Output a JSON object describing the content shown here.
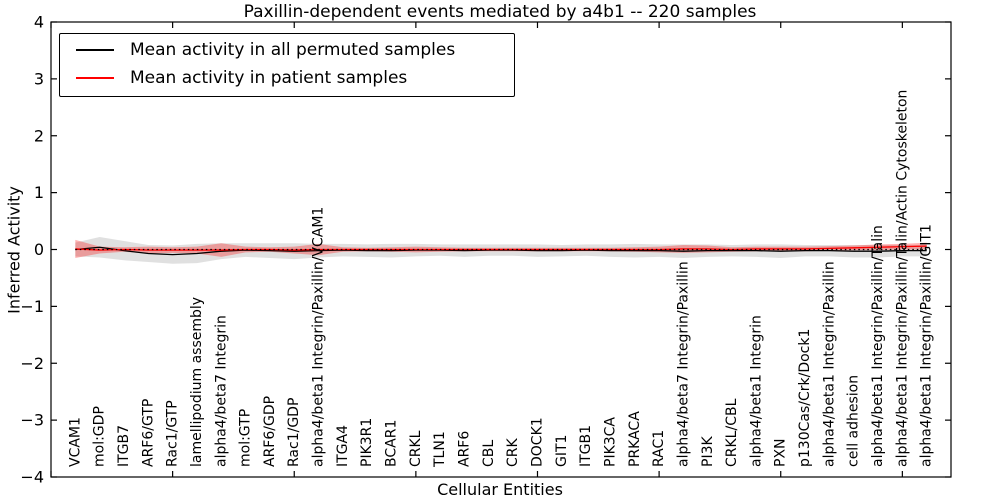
{
  "chart_data": {
    "type": "line",
    "title": "Paxillin-dependent events mediated by a4b1 -- 220 samples",
    "xlabel": "Cellular Entities",
    "ylabel": "Inferred Activity",
    "ylim": [
      -4,
      4
    ],
    "xlim": [
      0,
      37
    ],
    "grid": false,
    "legend_position": "upper left",
    "zero_line": true,
    "y_tick_values": [
      4,
      3,
      2,
      1,
      0,
      -1,
      -2,
      -3,
      -4
    ],
    "y_tick_labels": [
      "4",
      "3",
      "2",
      "1",
      "0",
      "−1",
      "−2",
      "−3",
      "−4"
    ],
    "x_major_tick_values": [
      0,
      5,
      10,
      15,
      20,
      25,
      30,
      35
    ],
    "categories": [
      "VCAM1",
      "mol:GDP",
      "ITGB7",
      "ARF6/GTP",
      "Rac1/GTP",
      "lamellipodium assembly",
      "alpha4/beta7 Integrin",
      "mol:GTP",
      "ARF6/GDP",
      "Rac1/GDP",
      "alpha4/beta1 Integrin/Paxillin/VCAM1",
      "ITGA4",
      "PIK3R1",
      "BCAR1",
      "CRKL",
      "TLN1",
      "ARF6",
      "CBL",
      "CRK",
      "DOCK1",
      "GIT1",
      "ITGB1",
      "PIK3CA",
      "PRKACA",
      "RAC1",
      "alpha4/beta7 Integrin/Paxillin",
      "PI3K",
      "CRKL/CBL",
      "alpha4/beta1 Integrin",
      "PXN",
      "p130Cas/Crk/Dock1",
      "alpha4/beta1 Integrin/Paxillin",
      "cell adhesion",
      "alpha4/beta1 Integrin/Paxillin/Talin",
      "alpha4/beta1 Integrin/Paxillin/Talin/Actin Cytoskeleton",
      "alpha4/beta1 Integrin/Paxillin/GIT1"
    ],
    "series": [
      {
        "name": "Mean activity in all permuted samples",
        "color": "#000000",
        "band_color": "#999999",
        "band_opacity": 0.3,
        "values": [
          0.0,
          0.04,
          -0.02,
          -0.07,
          -0.09,
          -0.07,
          -0.03,
          -0.01,
          -0.02,
          -0.03,
          -0.02,
          -0.01,
          -0.02,
          -0.02,
          -0.01,
          -0.01,
          -0.02,
          -0.01,
          -0.01,
          -0.02,
          -0.02,
          -0.01,
          -0.02,
          -0.02,
          -0.02,
          -0.03,
          -0.02,
          -0.02,
          -0.02,
          -0.03,
          -0.02,
          -0.02,
          -0.03,
          -0.03,
          -0.02,
          -0.02
        ],
        "std": [
          0.12,
          0.18,
          0.17,
          0.15,
          0.16,
          0.17,
          0.14,
          0.12,
          0.13,
          0.14,
          0.12,
          0.11,
          0.11,
          0.12,
          0.11,
          0.1,
          0.11,
          0.1,
          0.1,
          0.11,
          0.1,
          0.1,
          0.11,
          0.12,
          0.11,
          0.12,
          0.11,
          0.1,
          0.11,
          0.12,
          0.1,
          0.1,
          0.11,
          0.11,
          0.1,
          0.1
        ]
      },
      {
        "name": "Mean activity in patient samples",
        "color": "#ff0000",
        "band_color": "#ff0000",
        "band_opacity": 0.3,
        "values": [
          0.01,
          -0.01,
          0.0,
          -0.01,
          -0.01,
          -0.01,
          -0.01,
          0.0,
          0.0,
          -0.01,
          0.0,
          0.0,
          0.0,
          0.0,
          0.0,
          0.0,
          0.0,
          0.0,
          0.0,
          0.0,
          0.0,
          0.0,
          0.0,
          0.0,
          0.0,
          0.01,
          0.01,
          0.0,
          0.01,
          0.01,
          0.01,
          0.02,
          0.03,
          0.04,
          0.05,
          0.06
        ],
        "std": [
          0.16,
          0.06,
          0.04,
          0.06,
          0.05,
          0.06,
          0.12,
          0.05,
          0.04,
          0.06,
          0.1,
          0.04,
          0.03,
          0.04,
          0.05,
          0.04,
          0.03,
          0.03,
          0.03,
          0.03,
          0.03,
          0.03,
          0.03,
          0.04,
          0.05,
          0.07,
          0.06,
          0.04,
          0.04,
          0.04,
          0.04,
          0.04,
          0.04,
          0.05,
          0.05,
          0.06
        ]
      }
    ]
  }
}
